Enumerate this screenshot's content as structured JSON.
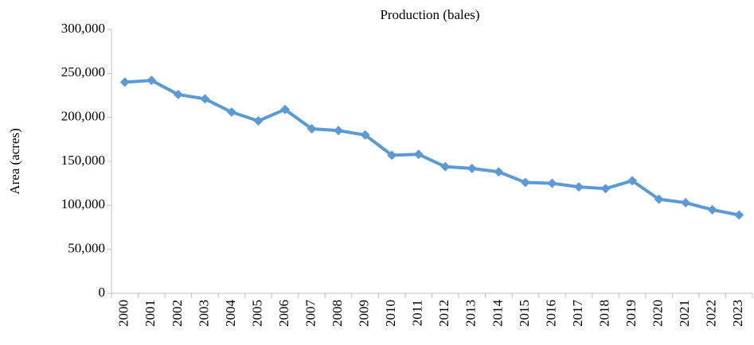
{
  "chart_data": {
    "type": "line",
    "title": "Production (bales)",
    "y_label": "Area (acres)",
    "categories": [
      "2000",
      "2001",
      "2002",
      "2003",
      "2004",
      "2005",
      "2006",
      "2007",
      "2008",
      "2009",
      "2010",
      "2011",
      "2012",
      "2013",
      "2014",
      "2015",
      "2016",
      "2017",
      "2018",
      "2019",
      "2020",
      "2021",
      "2022",
      "2023"
    ],
    "values": [
      240000,
      242000,
      226000,
      221000,
      206000,
      196000,
      209000,
      187000,
      185000,
      180000,
      157000,
      158000,
      144000,
      142000,
      138000,
      126000,
      125000,
      121000,
      119000,
      128000,
      107000,
      103000,
      95000,
      89000
    ],
    "color": "#5b9bd5",
    "ylim": [
      0,
      300000
    ],
    "yticks": [
      0,
      {
        "value": 50000,
        "label": "50,000"
      },
      {
        "value": 100000,
        "label": "100,000"
      },
      {
        "value": 150000,
        "label": "150,000"
      },
      {
        "value": 200000,
        "label": "200,000"
      },
      {
        "value": 250000,
        "label": "250,000"
      },
      {
        "value": 300000,
        "label": "300,000"
      }
    ],
    "grid": false
  }
}
